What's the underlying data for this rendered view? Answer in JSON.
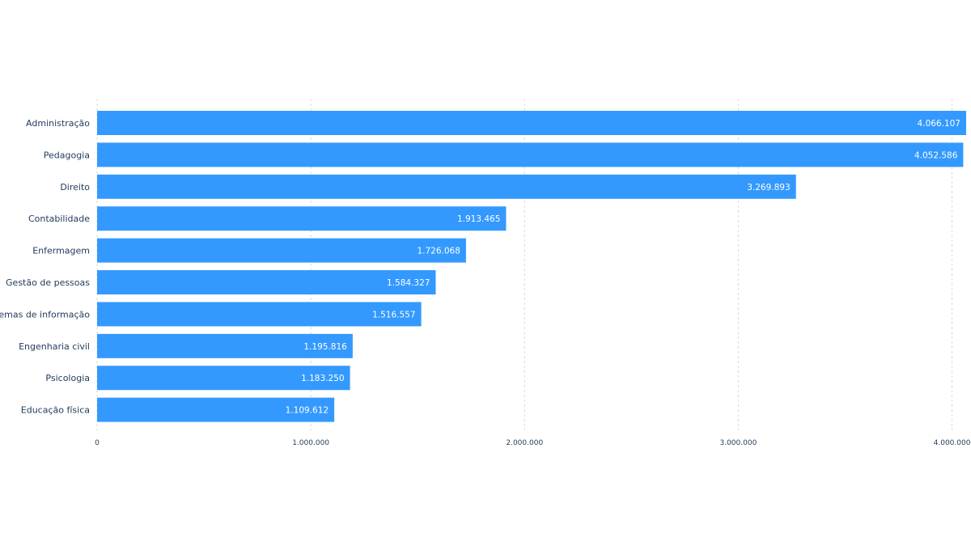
{
  "chart_data": {
    "type": "bar",
    "orientation": "horizontal",
    "categories": [
      "Administração",
      "Pedagogia",
      "Direito",
      "Contabilidade",
      "Enfermagem",
      "Gestão de pessoas",
      "Sistemas de informação",
      "Engenharia civil",
      "Psicologia",
      "Educação física"
    ],
    "values": [
      4066107,
      4052586,
      3269893,
      1913465,
      1726068,
      1584327,
      1516557,
      1195816,
      1183250,
      1109612
    ],
    "value_labels": [
      "4.066.107",
      "4.052.586",
      "3.269.893",
      "1.913.465",
      "1.726.068",
      "1.584.327",
      "1.516.557",
      "1.195.816",
      "1.183.250",
      "1.109.612"
    ],
    "x_ticks": [
      0,
      1000000,
      2000000,
      3000000,
      4000000
    ],
    "x_tick_labels": [
      "0",
      "1.000.000",
      "2.000.000",
      "3.000.000",
      "4.000.000"
    ],
    "xlim": [
      0,
      4066107
    ],
    "grid": "vertical dashed",
    "bar_color": "#3399ff",
    "title": "",
    "xlabel": "",
    "ylabel": ""
  }
}
